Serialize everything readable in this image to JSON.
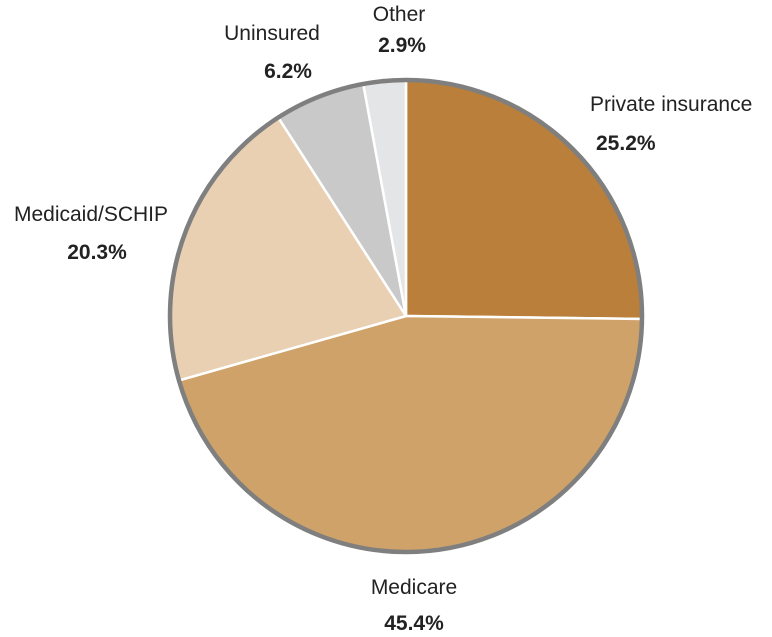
{
  "chart_data": {
    "type": "pie",
    "start_angle_deg": 0,
    "direction": "clockwise",
    "slices": [
      {
        "label": "Private insurance",
        "value": 25.2,
        "value_label": "25.2%",
        "color": "#b97f3b"
      },
      {
        "label": "Medicare",
        "value": 45.4,
        "value_label": "45.4%",
        "color": "#cfa26a"
      },
      {
        "label": "Medicaid/SCHIP",
        "value": 20.3,
        "value_label": "20.3%",
        "color": "#e9d0b2"
      },
      {
        "label": "Uninsured",
        "value": 6.2,
        "value_label": "6.2%",
        "color": "#c9c9c9"
      },
      {
        "label": "Other",
        "value": 2.9,
        "value_label": "2.9%",
        "color": "#e4e5e6"
      }
    ],
    "slice_border_color": "#ffffff",
    "outline_color": "#7f7f7f"
  }
}
